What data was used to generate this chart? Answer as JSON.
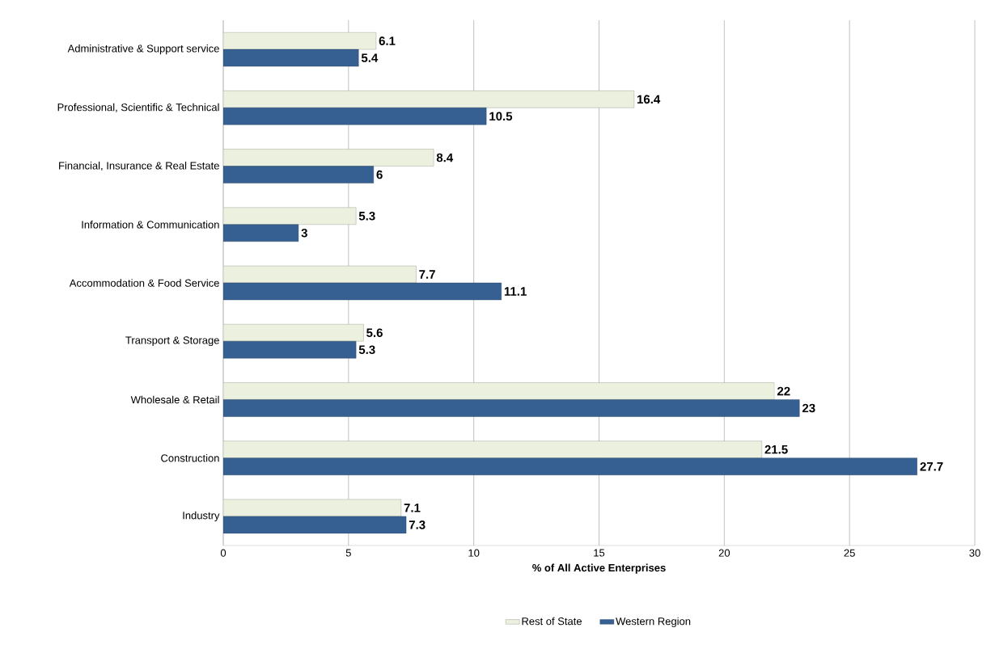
{
  "chart_data": {
    "type": "bar",
    "orientation": "horizontal",
    "xlabel": "% of All Active Enterprises",
    "categories": [
      "Administrative & Support service",
      "Professional, Scientific & Technical",
      "Financial, Insurance & Real Estate",
      "Information & Communication",
      "Accommodation & Food Service",
      "Transport & Storage",
      "Wholesale & Retail",
      "Construction",
      "Industry"
    ],
    "series": [
      {
        "name": "Rest of State",
        "color": "#ebf1de",
        "values": [
          6.1,
          16.4,
          8.4,
          5.3,
          7.7,
          5.6,
          22,
          21.5,
          7.1
        ]
      },
      {
        "name": "Western Region",
        "color": "#376092",
        "values": [
          5.4,
          10.5,
          6,
          3,
          11.1,
          5.3,
          23,
          27.7,
          7.3
        ]
      }
    ],
    "xlim": [
      0,
      30
    ],
    "xticks": [
      0,
      5,
      10,
      15,
      20,
      25,
      30
    ],
    "grid": "x",
    "legend": "bottom",
    "data_labels": true
  }
}
